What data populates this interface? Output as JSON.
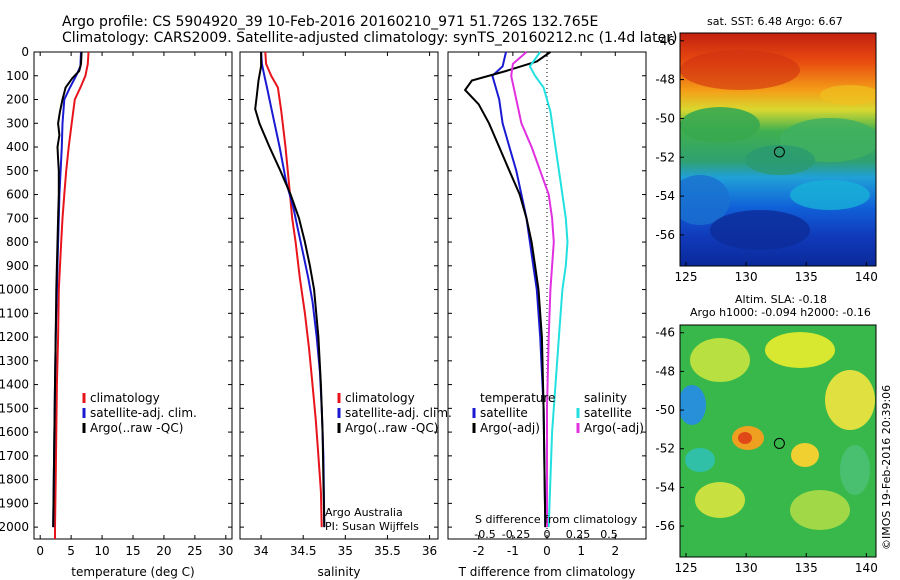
{
  "header": {
    "line1": "Argo profile: CS 5904920_39 10-Feb-2016 20160210_971 51.726S 132.765E",
    "line2": "Climatology: CARS2009. Satellite-adjusted climatology: synTS_20160212.nc (1.4d later)"
  },
  "colors": {
    "climatology": "#e8141c",
    "satellite": "#1a1ad2",
    "argo": "#000000",
    "sal_satellite": "#22e0e0",
    "sal_argo": "#e030e0"
  },
  "chart_data": [
    {
      "type": "line",
      "xlabel": "temperature (deg C)",
      "ylim": [
        2050,
        0
      ],
      "xlim": [
        -1,
        31
      ],
      "yticks": [
        0,
        100,
        200,
        300,
        400,
        500,
        600,
        700,
        800,
        900,
        1000,
        1100,
        1200,
        1300,
        1400,
        1500,
        1600,
        1700,
        1800,
        1900,
        2000
      ],
      "xticks": [
        0,
        5,
        10,
        15,
        20,
        25,
        30
      ],
      "legend": [
        "climatology",
        "satellite-adj. clim.",
        "Argo(..raw -QC)"
      ],
      "series": [
        {
          "name": "climatology",
          "color": "#e8141c",
          "points": [
            [
              7.8,
              0
            ],
            [
              7.7,
              50
            ],
            [
              7.3,
              100
            ],
            [
              6.5,
              150
            ],
            [
              5.6,
              200
            ],
            [
              5.1,
              300
            ],
            [
              4.6,
              400
            ],
            [
              4.2,
              500
            ],
            [
              3.9,
              600
            ],
            [
              3.6,
              700
            ],
            [
              3.4,
              800
            ],
            [
              3.2,
              900
            ],
            [
              3.0,
              1000
            ],
            [
              2.9,
              1200
            ],
            [
              2.7,
              1400
            ],
            [
              2.6,
              1600
            ],
            [
              2.5,
              1800
            ],
            [
              2.4,
              2000
            ],
            [
              2.4,
              2050
            ]
          ]
        },
        {
          "name": "satellite-adj. clim.",
          "color": "#1a1ad2",
          "points": [
            [
              6.6,
              0
            ],
            [
              6.5,
              60
            ],
            [
              5.8,
              100
            ],
            [
              4.8,
              150
            ],
            [
              3.9,
              200
            ],
            [
              3.6,
              300
            ],
            [
              3.5,
              400
            ],
            [
              3.3,
              500
            ],
            [
              3.1,
              600
            ],
            [
              3.0,
              700
            ],
            [
              2.9,
              800
            ],
            [
              2.8,
              900
            ],
            [
              2.7,
              1000
            ],
            [
              2.5,
              1200
            ],
            [
              2.4,
              1400
            ],
            [
              2.3,
              1600
            ],
            [
              2.2,
              1800
            ],
            [
              2.1,
              2000
            ]
          ]
        },
        {
          "name": "Argo(..raw -QC)",
          "color": "#000000",
          "points": [
            [
              6.7,
              0
            ],
            [
              6.6,
              50
            ],
            [
              6.3,
              80
            ],
            [
              5.2,
              110
            ],
            [
              4.1,
              150
            ],
            [
              3.6,
              200
            ],
            [
              3.2,
              250
            ],
            [
              2.9,
              300
            ],
            [
              3.1,
              350
            ],
            [
              2.8,
              400
            ],
            [
              2.9,
              450
            ],
            [
              3.0,
              500
            ],
            [
              3.0,
              600
            ],
            [
              2.9,
              700
            ],
            [
              2.8,
              800
            ],
            [
              2.7,
              900
            ],
            [
              2.6,
              1000
            ],
            [
              2.5,
              1200
            ],
            [
              2.4,
              1400
            ],
            [
              2.3,
              1600
            ],
            [
              2.2,
              1800
            ],
            [
              2.1,
              2000
            ]
          ]
        }
      ]
    },
    {
      "type": "line",
      "xlabel": "salinity",
      "ylim": [
        2050,
        0
      ],
      "xlim": [
        33.75,
        36.1
      ],
      "xticks": [
        34,
        34.5,
        35,
        35.5,
        36
      ],
      "legend": [
        "climatology",
        "satellite-adj. clim.",
        "Argo(..raw -QC)"
      ],
      "annotation": [
        "Argo Australia",
        "PI: Susan Wijffels"
      ],
      "series": [
        {
          "name": "climatology",
          "color": "#e8141c",
          "points": [
            [
              34.05,
              0
            ],
            [
              34.06,
              50
            ],
            [
              34.12,
              100
            ],
            [
              34.2,
              150
            ],
            [
              34.24,
              250
            ],
            [
              34.29,
              400
            ],
            [
              34.33,
              550
            ],
            [
              34.37,
              700
            ],
            [
              34.41,
              800
            ],
            [
              34.46,
              950
            ],
            [
              34.52,
              1100
            ],
            [
              34.57,
              1250
            ],
            [
              34.61,
              1400
            ],
            [
              34.65,
              1550
            ],
            [
              34.68,
              1700
            ],
            [
              34.71,
              1850
            ],
            [
              34.72,
              2000
            ]
          ]
        },
        {
          "name": "satellite-adj. clim.",
          "color": "#1a1ad2",
          "points": [
            [
              34.0,
              0
            ],
            [
              34.01,
              50
            ],
            [
              34.04,
              100
            ],
            [
              34.07,
              150
            ],
            [
              34.13,
              250
            ],
            [
              34.22,
              400
            ],
            [
              34.3,
              550
            ],
            [
              34.38,
              650
            ],
            [
              34.44,
              750
            ],
            [
              34.5,
              850
            ],
            [
              34.56,
              950
            ],
            [
              34.61,
              1050
            ],
            [
              34.66,
              1200
            ],
            [
              34.7,
              1350
            ],
            [
              34.72,
              1500
            ],
            [
              34.74,
              1700
            ],
            [
              34.75,
              2000
            ]
          ]
        },
        {
          "name": "Argo(..raw -QC)",
          "color": "#000000",
          "points": [
            [
              34.0,
              0
            ],
            [
              34.0,
              60
            ],
            [
              33.97,
              120
            ],
            [
              33.95,
              180
            ],
            [
              33.93,
              240
            ],
            [
              33.98,
              300
            ],
            [
              34.1,
              400
            ],
            [
              34.23,
              500
            ],
            [
              34.35,
              600
            ],
            [
              34.45,
              700
            ],
            [
              34.52,
              800
            ],
            [
              34.58,
              900
            ],
            [
              34.63,
              1000
            ],
            [
              34.68,
              1200
            ],
            [
              34.71,
              1400
            ],
            [
              34.73,
              1600
            ],
            [
              34.74,
              1800
            ],
            [
              34.75,
              2000
            ]
          ]
        }
      ]
    },
    {
      "type": "line",
      "xlabel": "T difference from climatology",
      "xlabel2": "S difference from climatology",
      "ylim": [
        2050,
        0
      ],
      "xlim": [
        -2.9,
        2.9
      ],
      "xticks": [
        -2,
        -1,
        0,
        1,
        2
      ],
      "xticks2": [
        "-0.5",
        "-0.25",
        "0",
        "0.25",
        "0.5"
      ],
      "legend_temperature": [
        "temperature",
        "satellite",
        "Argo(-adj)"
      ],
      "legend_salinity": [
        "salinity",
        "satellite",
        "Argo(-adj)"
      ],
      "series": [
        {
          "name": "T satellite",
          "color": "#1a1ad2",
          "points": [
            [
              -1.2,
              0
            ],
            [
              -1.3,
              60
            ],
            [
              -1.6,
              100
            ],
            [
              -1.5,
              150
            ],
            [
              -1.4,
              200
            ],
            [
              -1.3,
              300
            ],
            [
              -1.1,
              400
            ],
            [
              -0.9,
              500
            ],
            [
              -0.75,
              600
            ],
            [
              -0.6,
              700
            ],
            [
              -0.5,
              800
            ],
            [
              -0.4,
              900
            ],
            [
              -0.3,
              1000
            ],
            [
              -0.2,
              1200
            ],
            [
              -0.1,
              1500
            ],
            [
              -0.05,
              2000
            ]
          ]
        },
        {
          "name": "T Argo(-adj)",
          "color": "#000000",
          "points": [
            [
              0.1,
              0
            ],
            [
              -0.3,
              40
            ],
            [
              -1.2,
              80
            ],
            [
              -2.2,
              120
            ],
            [
              -2.4,
              160
            ],
            [
              -2.0,
              220
            ],
            [
              -1.7,
              300
            ],
            [
              -1.4,
              400
            ],
            [
              -1.1,
              500
            ],
            [
              -0.8,
              600
            ],
            [
              -0.6,
              700
            ],
            [
              -0.45,
              800
            ],
            [
              -0.35,
              900
            ],
            [
              -0.25,
              1000
            ],
            [
              -0.15,
              1200
            ],
            [
              -0.1,
              1500
            ],
            [
              -0.05,
              2000
            ]
          ]
        },
        {
          "name": "S satellite",
          "color": "#22e0e0",
          "points": [
            [
              -0.2,
              0
            ],
            [
              -0.5,
              60
            ],
            [
              -0.35,
              100
            ],
            [
              -0.1,
              150
            ],
            [
              0.1,
              250
            ],
            [
              0.25,
              400
            ],
            [
              0.4,
              550
            ],
            [
              0.55,
              700
            ],
            [
              0.6,
              800
            ],
            [
              0.55,
              900
            ],
            [
              0.45,
              1000
            ],
            [
              0.35,
              1200
            ],
            [
              0.25,
              1400
            ],
            [
              0.15,
              1600
            ],
            [
              0.1,
              1800
            ],
            [
              0.05,
              2000
            ]
          ]
        },
        {
          "name": "S Argo(-adj)",
          "color": "#e030e0",
          "points": [
            [
              -0.6,
              0
            ],
            [
              -1.0,
              50
            ],
            [
              -1.05,
              100
            ],
            [
              -0.9,
              200
            ],
            [
              -0.75,
              300
            ],
            [
              -0.45,
              400
            ],
            [
              -0.2,
              500
            ],
            [
              0.05,
              600
            ],
            [
              0.15,
              700
            ],
            [
              0.2,
              800
            ],
            [
              0.15,
              900
            ],
            [
              0.1,
              1000
            ],
            [
              0.05,
              1200
            ],
            [
              0.0,
              1500
            ],
            [
              0.0,
              2000
            ]
          ]
        }
      ]
    }
  ],
  "maps": {
    "sst": {
      "title": "sat. SST: 6.48  Argo: 6.67",
      "yticks": [
        "-46",
        "-48",
        "-50",
        "-52",
        "-54",
        "-56"
      ],
      "xticks": [
        "125",
        "130",
        "135",
        "140"
      ],
      "marker": {
        "lon": 132.765,
        "lat": -51.726
      }
    },
    "sla": {
      "title1": "Altim. SLA: -0.18",
      "title2": "Argo h1000: -0.094 h2000: -0.16",
      "yticks": [
        "-46",
        "-48",
        "-50",
        "-52",
        "-54",
        "-56"
      ],
      "xticks": [
        "125",
        "130",
        "135",
        "140"
      ],
      "marker": {
        "lon": 132.765,
        "lat": -51.726
      },
      "credit": "©IMOS 19-Feb-2016 20:39:06"
    }
  }
}
